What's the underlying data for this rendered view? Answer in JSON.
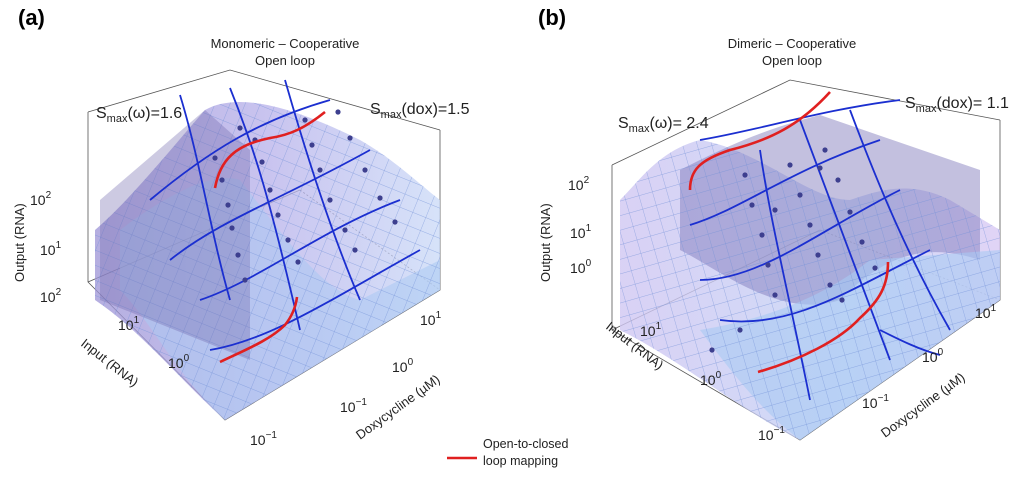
{
  "figure": {
    "legend": {
      "label_line1": "Open-to-closed",
      "label_line2": "loop mapping",
      "color": "#e02020"
    }
  },
  "colors": {
    "surface_dark": "#7b73b8",
    "surface_light": "#b9b2ec",
    "surface_flat": "#a9c9f3",
    "mesh": "#6f8fd6",
    "blue_curves": "#1b2fd0",
    "points": "#3d3f8f",
    "mapping": "#e02020"
  },
  "chart_data": [
    {
      "type": "surface3d",
      "panel_label": "(a)",
      "title": "Monomeric – Cooperative",
      "subtitle": "Open loop",
      "annotations": [
        {
          "text": "S",
          "sub": "max",
          "rest": "(ω)=1.6"
        },
        {
          "text": "S",
          "sub": "max",
          "rest": "(dox)=1.5"
        }
      ],
      "axes": {
        "z": {
          "label": "Output (RNA)",
          "scale": "log",
          "ticks": [
            "10^2",
            "10^1"
          ]
        },
        "x": {
          "label": "Input (RNA)",
          "scale": "log",
          "ticks": [
            "10^2",
            "10^1",
            "10^0",
            "10^-1"
          ]
        },
        "y": {
          "label": "Doxycycline (µM)",
          "scale": "log",
          "ticks": [
            "10^1",
            "10^0",
            "10^-1"
          ]
        }
      },
      "series": [
        {
          "name": "Open-to-closed loop mapping",
          "kind": "curve"
        }
      ]
    },
    {
      "type": "surface3d",
      "panel_label": "(b)",
      "title": "Dimeric – Cooperative",
      "subtitle": "Open loop",
      "annotations": [
        {
          "text": "S",
          "sub": "max",
          "rest": "(ω)= 2.4"
        },
        {
          "text": "S",
          "sub": "max",
          "rest": "(dox)= 1.1"
        }
      ],
      "axes": {
        "z": {
          "label": "Output (RNA)",
          "scale": "log",
          "ticks": [
            "10^2",
            "10^1",
            "10^0"
          ]
        },
        "x": {
          "label": "Input (RNA)",
          "scale": "log",
          "ticks": [
            "10^1",
            "10^0",
            "10^-1"
          ]
        },
        "y": {
          "label": "Doxycycline (µM)",
          "scale": "log",
          "ticks": [
            "10^1",
            "10^0",
            "10^-1"
          ]
        }
      },
      "series": [
        {
          "name": "Open-to-closed loop mapping",
          "kind": "curve"
        }
      ]
    }
  ]
}
